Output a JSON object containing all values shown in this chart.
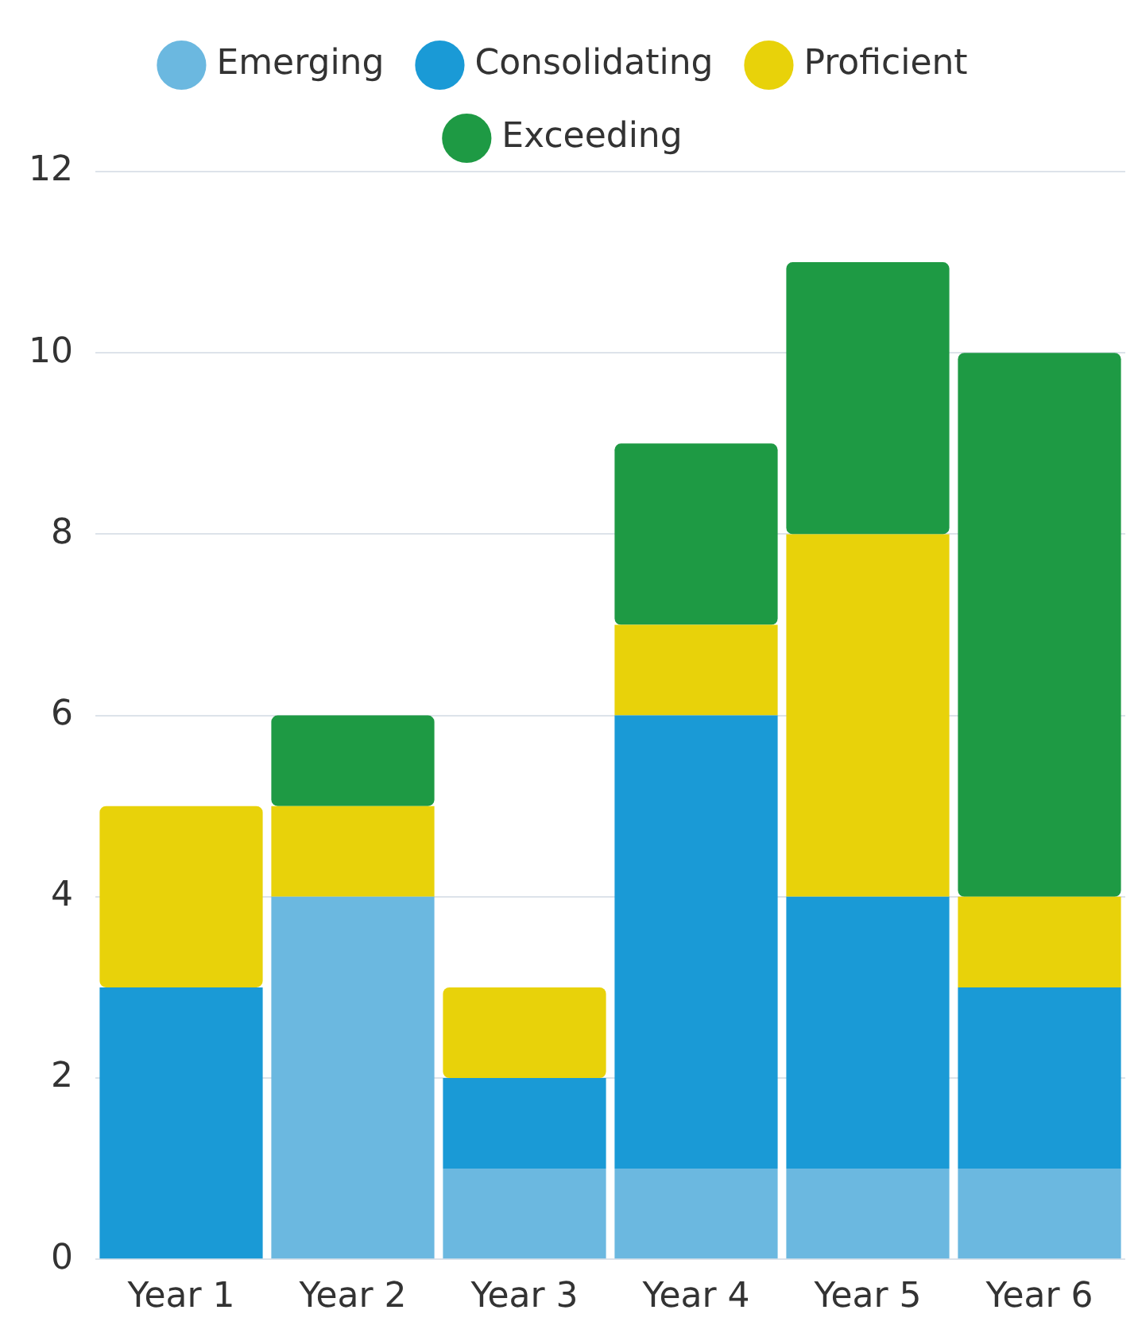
{
  "chart_data": {
    "type": "bar",
    "stacked": true,
    "categories": [
      "Year 1",
      "Year 2",
      "Year 3",
      "Year 4",
      "Year 5",
      "Year 6"
    ],
    "series": [
      {
        "name": "Emerging",
        "color": "#6bb8e0",
        "values": [
          0,
          4,
          1,
          1,
          1,
          1
        ]
      },
      {
        "name": "Consolidating",
        "color": "#1a9ad6",
        "values": [
          3,
          0,
          1,
          5,
          3,
          2
        ]
      },
      {
        "name": "Proficient",
        "color": "#e8d20a",
        "values": [
          2,
          1,
          1,
          1,
          4,
          1
        ]
      },
      {
        "name": "Exceeding",
        "color": "#1e9a44",
        "values": [
          0,
          1,
          0,
          2,
          3,
          6
        ]
      }
    ],
    "ylim": [
      0,
      12
    ],
    "yticks": [
      0,
      2,
      4,
      6,
      8,
      10,
      12
    ],
    "grid": "y",
    "legend": "top"
  }
}
